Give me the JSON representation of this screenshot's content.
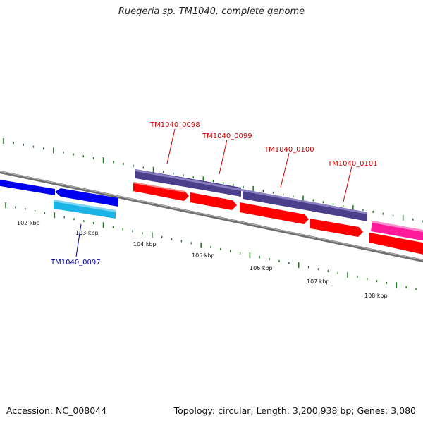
{
  "title": "Ruegeria sp. TM1040, complete genome",
  "footer": {
    "accession": "Accession: NC_008044",
    "info": "Topology: circular; Length: 3,200,938 bp; Genes: 3,080"
  },
  "scale_labels": [
    "102 kbp",
    "103 kbp",
    "104 kbp",
    "105 kbp",
    "106 kbp",
    "107 kbp",
    "108 kbp"
  ],
  "gene_labels": {
    "g0097": "TM1040_0097",
    "g0098": "TM1040_0098",
    "g0099": "TM1040_0099",
    "g0100": "TM1040_0100",
    "g0101": "TM1040_0101"
  },
  "colors": {
    "backbone": "#7a7a7a",
    "tick": "#1e7a1e",
    "label_red": "#cc0000",
    "label_blue": "#0000aa",
    "gene_red": "#ff0000",
    "gene_purple": "#4b3f8c",
    "gene_blue": "#0000ee",
    "gene_cyan": "#1ab4e6",
    "gene_magenta": "#ff1a9c"
  }
}
